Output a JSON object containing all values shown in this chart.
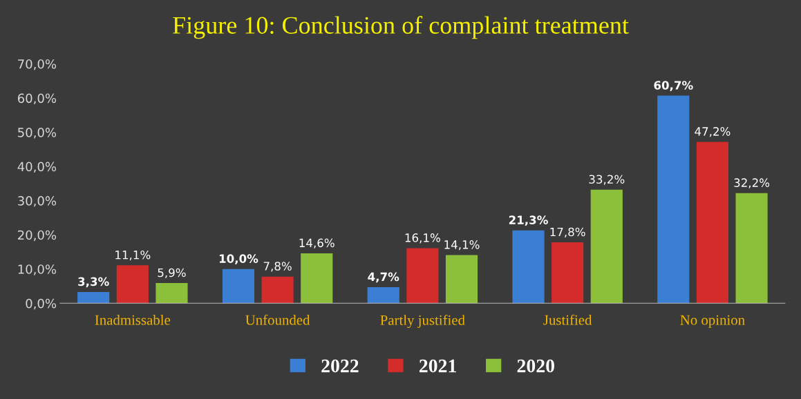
{
  "chart_data": {
    "type": "bar",
    "title": "Figure 10: Conclusion of complaint treatment",
    "categories": [
      "Inadmissable",
      "Unfounded",
      "Partly justified",
      "Justified",
      "No opinion"
    ],
    "series": [
      {
        "name": "2022",
        "color": "#3b7fd4",
        "values": [
          3.3,
          10.0,
          4.7,
          21.3,
          60.7
        ],
        "value_labels": [
          "3,3%",
          "10,0%",
          "4,7%",
          "21,3%",
          "60,7%"
        ]
      },
      {
        "name": "2021",
        "color": "#d42b2b",
        "values": [
          11.1,
          7.8,
          16.1,
          17.8,
          47.2
        ],
        "value_labels": [
          "11,1%",
          "7,8%",
          "16,1%",
          "17,8%",
          "47,2%"
        ]
      },
      {
        "name": "2020",
        "color": "#8dc03a",
        "values": [
          5.9,
          14.6,
          14.1,
          33.2,
          32.2
        ],
        "value_labels": [
          "5,9%",
          "14,6%",
          "14,1%",
          "33,2%",
          "32,2%"
        ]
      }
    ],
    "ylim": [
      0,
      70
    ],
    "yticks": [
      {
        "value": 0,
        "label": "0,0%"
      },
      {
        "value": 10,
        "label": "10,0%"
      },
      {
        "value": 20,
        "label": "20,0%"
      },
      {
        "value": 30,
        "label": "30,0%"
      },
      {
        "value": 40,
        "label": "40,0%"
      },
      {
        "value": 50,
        "label": "50,0%"
      },
      {
        "value": 60,
        "label": "60,0%"
      },
      {
        "value": 70,
        "label": "70,0%"
      }
    ],
    "grid": false,
    "legend": "bottom"
  }
}
